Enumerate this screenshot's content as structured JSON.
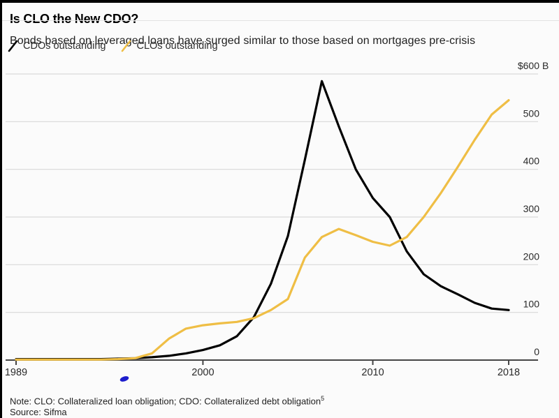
{
  "header": {
    "title": "Is CLO the New CDO?",
    "subtitle": "Bonds based on leveraged loans have surged similar to those based on mortgages pre-crisis"
  },
  "legend": {
    "items": [
      {
        "label": "CDOs outstanding",
        "color": "#000000"
      },
      {
        "label": "CLOs outstanding",
        "color": "#efbe45"
      }
    ]
  },
  "chart_data": {
    "type": "line",
    "x": [
      1989,
      1990,
      1991,
      1992,
      1993,
      1994,
      1995,
      1996,
      1997,
      1998,
      1999,
      2000,
      2001,
      2002,
      2003,
      2004,
      2005,
      2006,
      2007,
      2008,
      2009,
      2010,
      2011,
      2012,
      2013,
      2014,
      2015,
      2016,
      2017,
      2018
    ],
    "series": [
      {
        "name": "CDOs outstanding",
        "color": "#000000",
        "values": [
          2,
          2,
          2,
          2,
          2,
          2,
          3,
          4,
          6,
          9,
          14,
          21,
          31,
          50,
          90,
          160,
          260,
          420,
          585,
          490,
          400,
          340,
          300,
          228,
          180,
          155,
          138,
          120,
          108,
          105
        ]
      },
      {
        "name": "CLOs outstanding",
        "color": "#efbe45",
        "values": [
          1,
          1,
          1,
          1,
          1,
          1,
          2,
          4,
          14,
          45,
          66,
          73,
          77,
          80,
          88,
          105,
          128,
          215,
          258,
          275,
          262,
          248,
          240,
          258,
          300,
          350,
          405,
          462,
          515,
          545
        ]
      }
    ],
    "title": "Is CLO the New CDO?",
    "xlabel": "",
    "ylabel": "",
    "ylim": [
      0,
      600
    ],
    "yticks": [
      0,
      100,
      200,
      300,
      400,
      500,
      600
    ],
    "ytop_label": "$600 B",
    "xticks": [
      1989,
      2000,
      2010,
      2018
    ],
    "grid": "horizontal",
    "legend_position": "top-left",
    "units": "billions USD"
  },
  "footer": {
    "note": "Note: CLO: Collateralized loan obligation; CDO: Collateralized debt obligation",
    "note_superscript": "5",
    "source": "Source: Sifma"
  },
  "artifacts": {
    "stray_mark_color": "#1d1dcc"
  },
  "colors": {
    "background": "#fbfbfb",
    "gridline": "#d9d9d9",
    "axis": "#454545",
    "tick_label": "#2a2a2a"
  }
}
